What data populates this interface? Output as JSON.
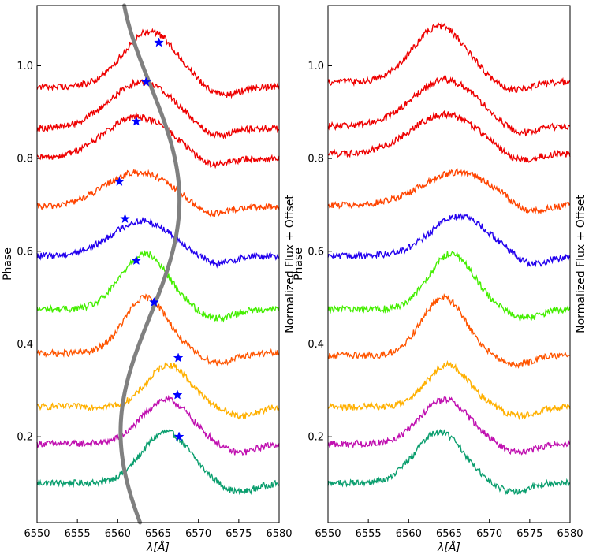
{
  "chart_data": [
    {
      "type": "line",
      "title": "",
      "xlabel": "λ[Å]",
      "ylabel_left": "Phase",
      "ylabel_right": "Normalized Flux + Offset",
      "xlim": [
        6550,
        6580
      ],
      "ylim": [
        0.015,
        1.13
      ],
      "xticks": [
        6550,
        6555,
        6560,
        6565,
        6570,
        6575,
        6580
      ],
      "yticks": [
        0.2,
        0.4,
        0.6,
        0.8,
        1.0
      ],
      "ytick_labels": [
        "0.2",
        "0.4",
        "0.6",
        "0.8",
        "1.0"
      ],
      "grid": false,
      "legend": "none",
      "series": [
        {
          "phase": 0.1,
          "baseline": 0.1,
          "center": 6566.0,
          "amp": 0.11,
          "width": 3.0,
          "color": "#0a9e6e"
        },
        {
          "phase": 0.19,
          "baseline": 0.185,
          "center": 6566.0,
          "amp": 0.095,
          "width": 3.0,
          "color": "#c010b0"
        },
        {
          "phase": 0.27,
          "baseline": 0.265,
          "center": 6566.3,
          "amp": 0.09,
          "width": 2.6,
          "color": "#ffb000"
        },
        {
          "phase": 0.38,
          "baseline": 0.38,
          "center": 6563.5,
          "amp": 0.12,
          "width": 2.7,
          "color": "#ff5500"
        },
        {
          "phase": 0.48,
          "baseline": 0.475,
          "center": 6563.3,
          "amp": 0.12,
          "width": 2.9,
          "color": "#44ee00"
        },
        {
          "phase": 0.59,
          "baseline": 0.59,
          "center": 6563.0,
          "amp": 0.075,
          "width": 3.8,
          "color": "#2200ee"
        },
        {
          "phase": 0.69,
          "baseline": 0.695,
          "center": 6562.5,
          "amp": 0.075,
          "width": 4.2,
          "color": "#ff4400"
        },
        {
          "phase": 0.8,
          "baseline": 0.8,
          "center": 6562.5,
          "amp": 0.09,
          "width": 4.2,
          "color": "#ee0000"
        },
        {
          "phase": 0.87,
          "baseline": 0.865,
          "center": 6563.0,
          "amp": 0.1,
          "width": 4.0,
          "color": "#ee0000"
        },
        {
          "phase": 0.96,
          "baseline": 0.955,
          "center": 6564.0,
          "amp": 0.12,
          "width": 3.3,
          "color": "#ee0000"
        }
      ],
      "velocity_curve": {
        "color": "#808080",
        "center": 6564.0,
        "amplitude": 3.65,
        "phase_offset": 0.46
      },
      "markers": [
        {
          "x": 6567.6,
          "y": 0.2
        },
        {
          "x": 6567.4,
          "y": 0.29
        },
        {
          "x": 6567.5,
          "y": 0.37
        },
        {
          "x": 6564.5,
          "y": 0.49
        },
        {
          "x": 6562.3,
          "y": 0.58
        },
        {
          "x": 6560.9,
          "y": 0.67
        },
        {
          "x": 6560.2,
          "y": 0.75
        },
        {
          "x": 6562.3,
          "y": 0.88
        },
        {
          "x": 6563.5,
          "y": 0.965
        },
        {
          "x": 6565.1,
          "y": 1.05
        }
      ],
      "marker_color": "#0000ff"
    },
    {
      "type": "line",
      "title": "",
      "xlabel": "λ[Å]",
      "ylabel_left": "Phase",
      "ylabel_right": "Normalized Flux + Offset",
      "xlim": [
        6550,
        6580
      ],
      "ylim": [
        0.015,
        1.13
      ],
      "xticks": [
        6550,
        6555,
        6560,
        6565,
        6570,
        6575,
        6580
      ],
      "yticks": [
        0.2,
        0.4,
        0.6,
        0.8,
        1.0
      ],
      "ytick_labels": [
        "0.2",
        "0.4",
        "0.6",
        "0.8",
        "1.0"
      ],
      "grid": false,
      "legend": "none",
      "series": [
        {
          "phase": 0.1,
          "baseline": 0.1,
          "center": 6563.8,
          "amp": 0.11,
          "width": 3.0,
          "color": "#0a9e6e"
        },
        {
          "phase": 0.19,
          "baseline": 0.185,
          "center": 6564.5,
          "amp": 0.095,
          "width": 3.0,
          "color": "#c010b0"
        },
        {
          "phase": 0.27,
          "baseline": 0.265,
          "center": 6564.8,
          "amp": 0.09,
          "width": 2.6,
          "color": "#ffb000"
        },
        {
          "phase": 0.38,
          "baseline": 0.375,
          "center": 6564.3,
          "amp": 0.125,
          "width": 2.7,
          "color": "#ff5500"
        },
        {
          "phase": 0.48,
          "baseline": 0.475,
          "center": 6565.3,
          "amp": 0.12,
          "width": 2.8,
          "color": "#44ee00"
        },
        {
          "phase": 0.59,
          "baseline": 0.59,
          "center": 6566.3,
          "amp": 0.085,
          "width": 3.6,
          "color": "#2200ee"
        },
        {
          "phase": 0.69,
          "baseline": 0.7,
          "center": 6566.0,
          "amp": 0.07,
          "width": 4.3,
          "color": "#ff4400"
        },
        {
          "phase": 0.8,
          "baseline": 0.81,
          "center": 6564.5,
          "amp": 0.085,
          "width": 4.2,
          "color": "#ee0000"
        },
        {
          "phase": 0.87,
          "baseline": 0.87,
          "center": 6564.5,
          "amp": 0.1,
          "width": 4.0,
          "color": "#ee0000"
        },
        {
          "phase": 0.96,
          "baseline": 0.965,
          "center": 6563.8,
          "amp": 0.12,
          "width": 3.3,
          "color": "#ee0000"
        }
      ]
    }
  ]
}
